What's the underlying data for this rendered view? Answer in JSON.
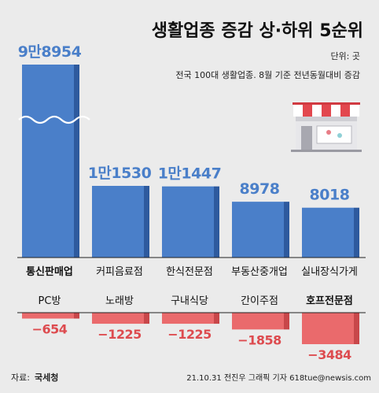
{
  "chart_data": [
    {
      "type": "bar",
      "title": "생활업종 증감 상·하위 5순위",
      "unit": "단위: 곳",
      "subtitle": "전국 100대 생활업종. 8월 기준 전년동월대비 증감",
      "categories": [
        "통신판매업",
        "커피음료점",
        "한식전문점",
        "부동산중개업",
        "실내장식가게"
      ],
      "values": [
        98954,
        11530,
        11447,
        8978,
        8018
      ],
      "value_labels": [
        "9만8954",
        "1만1530",
        "1만1447",
        "8978",
        "8018"
      ],
      "highlight": "통신판매업",
      "axis_break": true
    },
    {
      "type": "bar",
      "categories": [
        "PC방",
        "노래방",
        "구내식당",
        "간이주점",
        "호프전문점"
      ],
      "values": [
        -654,
        -1225,
        -1225,
        -1858,
        -3484
      ],
      "value_labels": [
        "−654",
        "−1225",
        "−1225",
        "−1858",
        "−3484"
      ],
      "highlight": "호프전문점"
    }
  ],
  "footer": {
    "source_label": "자료:",
    "source_name": "국세청",
    "credit": "21.10.31  전진우  그래픽  기자  618tue@newsis.com"
  },
  "colors": {
    "top_bar_front": "#4a7fc9",
    "top_bar_side": "#2e5a9e",
    "bottom_bar_front": "#ea6a6c",
    "bottom_bar_side": "#c8474a",
    "top_label": "#4a7fc9",
    "bottom_label": "#dd4b4f"
  },
  "icons": {
    "shop": "store-awning-icon"
  }
}
